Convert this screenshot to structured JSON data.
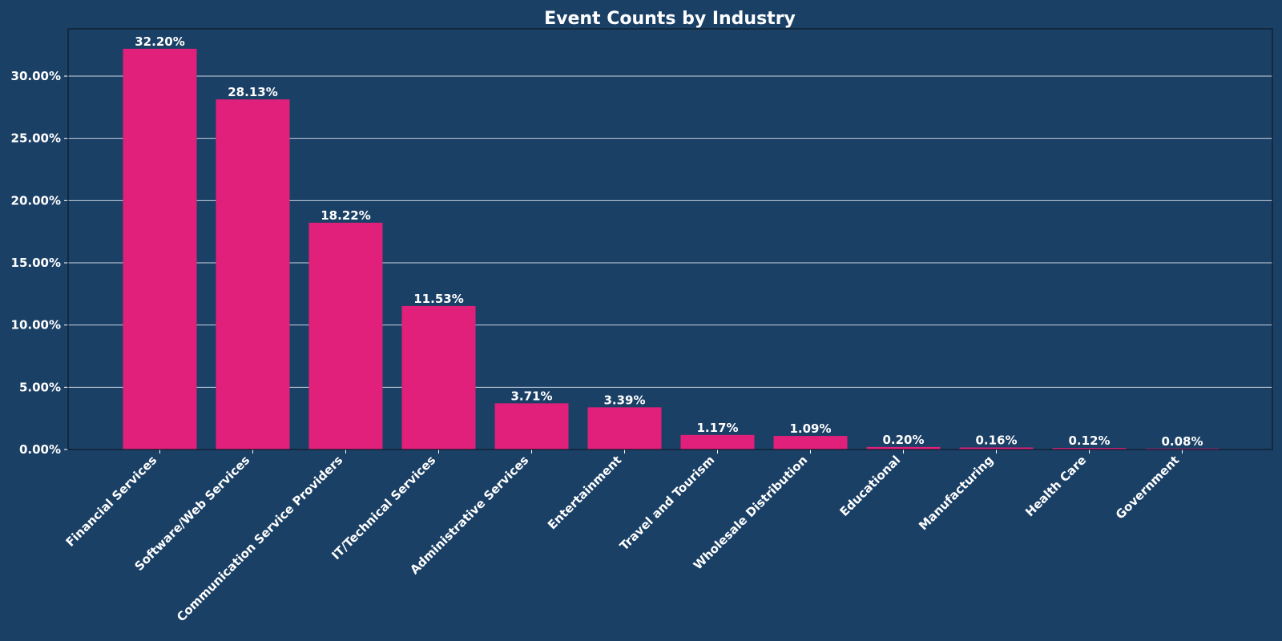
{
  "chart_data": {
    "type": "bar",
    "title": "Event Counts by Industry",
    "xlabel": "",
    "ylabel": "",
    "categories": [
      "Financial Services",
      "Software/Web Services",
      "Communication Service Providers",
      "IT/Technical Services",
      "Administrative Services",
      "Entertainment",
      "Travel and Tourism",
      "Wholesale Distribution",
      "Educational",
      "Manufacturing",
      "Health Care",
      "Government"
    ],
    "values": [
      32.2,
      28.13,
      18.22,
      11.53,
      3.71,
      3.39,
      1.17,
      1.09,
      0.2,
      0.16,
      0.12,
      0.08
    ],
    "value_labels": [
      "32.20%",
      "28.13%",
      "18.22%",
      "11.53%",
      "3.71%",
      "3.39%",
      "1.17%",
      "1.09%",
      "0.20%",
      "0.16%",
      "0.12%",
      "0.08%"
    ],
    "ylim": [
      0,
      33.8
    ],
    "yticks": [
      0,
      5,
      10,
      15,
      20,
      25,
      30
    ],
    "ytick_labels": [
      "0.00%",
      "5.00%",
      "10.00%",
      "15.00%",
      "20.00%",
      "25.00%",
      "30.00%"
    ],
    "grid": "horizontal",
    "legend": "none",
    "colors": {
      "background": "#1b4066",
      "bar": "#e0207a",
      "text": "#ffffff",
      "grid": "#c8d3df",
      "axis": "#0d1a26"
    }
  }
}
